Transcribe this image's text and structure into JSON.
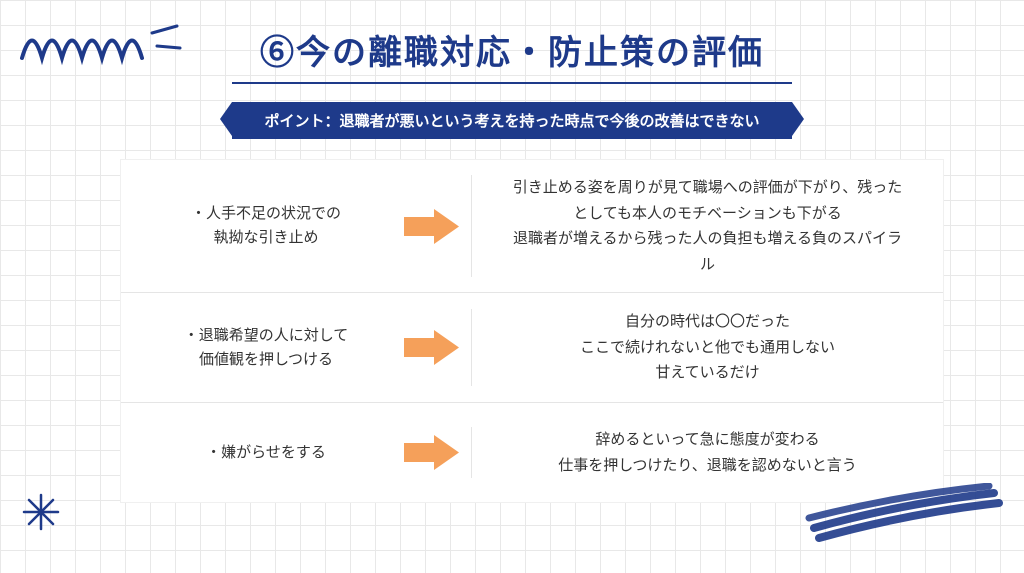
{
  "title": "⑥今の離職対応・防止策の評価",
  "point_banner": "ポイント：退職者が悪いという考えを持った時点で今後の改善はできない",
  "colors": {
    "primary": "#1e3a8a",
    "arrow": "#f5a05a",
    "text": "#333333",
    "grid": "#e8e8e8",
    "divider": "#e5e5e5",
    "background": "#ffffff"
  },
  "rows": [
    {
      "left": "・人手不足の状況での\n執拗な引き止め",
      "right": "引き止める姿を周りが見て職場への評価が下がり、残った\nとしても本人のモチベーションも下がる\n退職者が増えるから残った人の負担も増える負のスパイラ\nル"
    },
    {
      "left": "・退職希望の人に対して\n価値観を押しつける",
      "right": "自分の時代は〇〇だった\nここで続けれないと他でも通用しない\n甘えているだけ"
    },
    {
      "left": "・嫌がらせをする",
      "right": "辞めるといって急に態度が変わる\n仕事を押しつけたり、退職を認めないと言う"
    }
  ]
}
